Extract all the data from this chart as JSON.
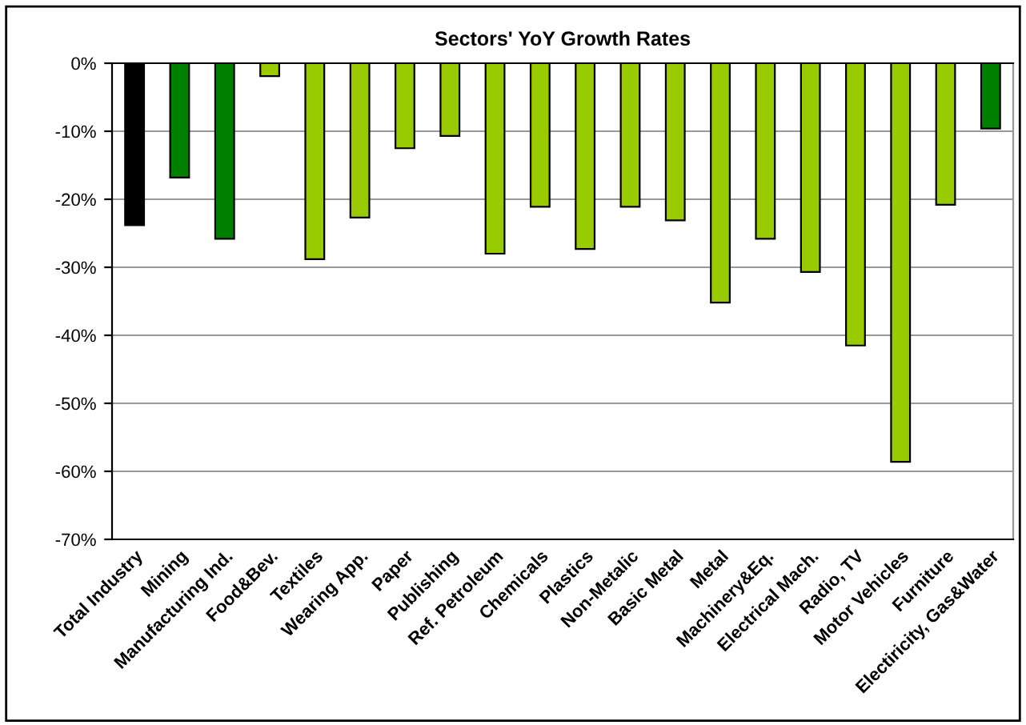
{
  "chart_data": {
    "type": "bar",
    "title": "Sectors' YoY Growth Rates",
    "categories": [
      "Total Industry",
      "Mining",
      "Manufacturing Ind.",
      "Food&Bev.",
      "Textiles",
      "Wearing App.",
      "Paper",
      "Publishing",
      "Ref. Petroleum",
      "Chemicals",
      "Plastics",
      "Non-Metalic",
      "Basic Metal",
      "Metal",
      "Machinery&Eq.",
      "Electrical Mach.",
      "Radio, TV",
      "Motor Vehicles",
      "Furniture",
      "Electiricity, Gas&Water"
    ],
    "values": [
      -23.8,
      -16.8,
      -25.8,
      -1.9,
      -28.8,
      -22.7,
      -12.5,
      -10.7,
      -28.0,
      -21.1,
      -27.3,
      -21.1,
      -23.1,
      -35.2,
      -25.8,
      -30.7,
      -41.5,
      -58.6,
      -20.8,
      -9.6
    ],
    "colors": [
      "#000000",
      "#008000",
      "#008000",
      "#99cc00",
      "#99cc00",
      "#99cc00",
      "#99cc00",
      "#99cc00",
      "#99cc00",
      "#99cc00",
      "#99cc00",
      "#99cc00",
      "#99cc00",
      "#99cc00",
      "#99cc00",
      "#99cc00",
      "#99cc00",
      "#99cc00",
      "#99cc00",
      "#008000"
    ],
    "ylim": [
      -70,
      0
    ],
    "yticks": [
      {
        "value": 0,
        "label": "0%"
      },
      {
        "value": -10,
        "label": "-10%"
      },
      {
        "value": -20,
        "label": "-20%"
      },
      {
        "value": -30,
        "label": "-30%"
      },
      {
        "value": -40,
        "label": "-40%"
      },
      {
        "value": -50,
        "label": "-50%"
      },
      {
        "value": -60,
        "label": "-60%"
      },
      {
        "value": -70,
        "label": "-70%"
      }
    ],
    "grid": "y"
  }
}
